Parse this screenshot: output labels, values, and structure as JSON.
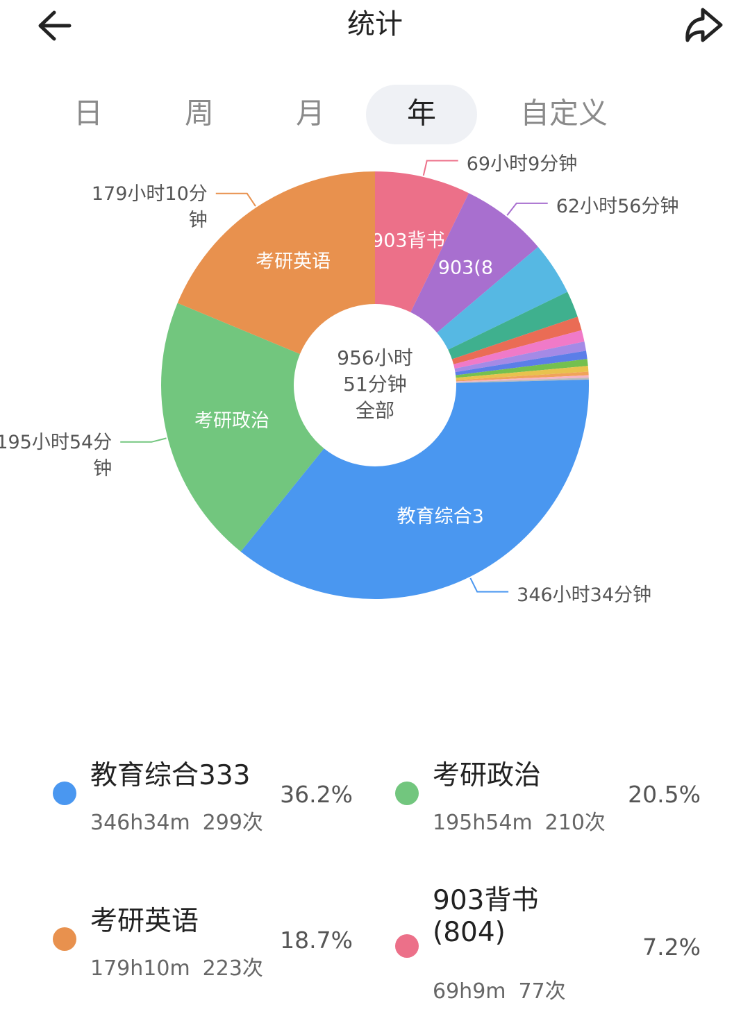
{
  "header": {
    "title": "统计"
  },
  "tabs": {
    "items": [
      "日",
      "周",
      "月",
      "年",
      "自定义"
    ],
    "selected": 3
  },
  "chart_data": {
    "type": "donut",
    "categories": [
      "903背书(804)",
      null,
      null,
      null,
      null,
      null,
      null,
      null,
      null,
      null,
      null,
      null,
      null,
      "教育综合333",
      "考研政治",
      "考研英语"
    ],
    "slice_labels": [
      "903背书",
      "903(8",
      null,
      null,
      null,
      null,
      null,
      null,
      null,
      null,
      null,
      null,
      null,
      "教育综合3",
      "考研政治",
      "考研英语"
    ],
    "values": [
      4149,
      3776,
      2300,
      1150,
      600,
      500,
      400,
      350,
      300,
      250,
      150,
      100,
      88,
      20794,
      11754,
      10750
    ],
    "value_labels": [
      "69小时9分钟",
      "62小时56分钟",
      null,
      null,
      null,
      null,
      null,
      null,
      null,
      null,
      null,
      null,
      null,
      "346小时34分钟",
      "195小时54分钟",
      "179小时10分钟"
    ],
    "colors": [
      "#ec7089",
      "#a86fcf",
      "#56b8e3",
      "#3fb08e",
      "#ea6c55",
      "#f07ac8",
      "#a48ae6",
      "#5b7ee8",
      "#74c04f",
      "#e8c24e",
      "#f0a35a",
      "#f5b4c4",
      "#bbbbbb",
      "#4a97f0",
      "#72c67e",
      "#e8914e"
    ],
    "center_label": [
      "956小时",
      "51分钟",
      "全部"
    ]
  },
  "legend": {
    "items": [
      {
        "name": "教育综合333",
        "time": "346h34m",
        "count": "299次",
        "percent": "36.2%",
        "color": "#4a97f0"
      },
      {
        "name": "考研政治",
        "time": "195h54m",
        "count": "210次",
        "percent": "20.5%",
        "color": "#72c67e"
      },
      {
        "name": "考研英语",
        "time": "179h10m",
        "count": "223次",
        "percent": "18.7%",
        "color": "#e8914e"
      },
      {
        "name": "903背书(804)",
        "time": "69h9m",
        "count": "77次",
        "percent": "7.2%",
        "color": "#ec7089"
      }
    ]
  }
}
